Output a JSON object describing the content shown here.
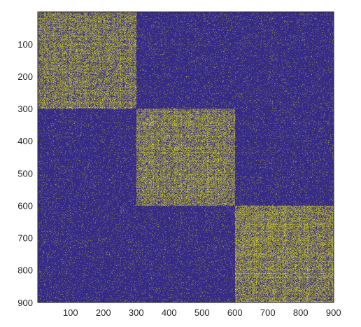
{
  "chart_data": {
    "type": "heatmap",
    "title": "",
    "xlabel": "",
    "ylabel": "",
    "xlim": [
      1,
      900
    ],
    "ylim": [
      1,
      900
    ],
    "y_axis_direction": "top-to-bottom",
    "grid": false,
    "colormap": {
      "background": "#352a87",
      "foreground": "#f9fb0e"
    },
    "x_ticks": [
      100,
      200,
      300,
      400,
      500,
      600,
      700,
      800,
      900
    ],
    "y_ticks": [
      100,
      200,
      300,
      400,
      500,
      600,
      700,
      800,
      900
    ],
    "blocks": [
      {
        "row_range": [
          1,
          300
        ],
        "col_range": [
          1,
          300
        ],
        "density": 0.32
      },
      {
        "row_range": [
          301,
          600
        ],
        "col_range": [
          301,
          600
        ],
        "density": 0.34
      },
      {
        "row_range": [
          601,
          900
        ],
        "col_range": [
          601,
          900
        ],
        "density": 0.36
      }
    ],
    "background_density": 0.035
  }
}
